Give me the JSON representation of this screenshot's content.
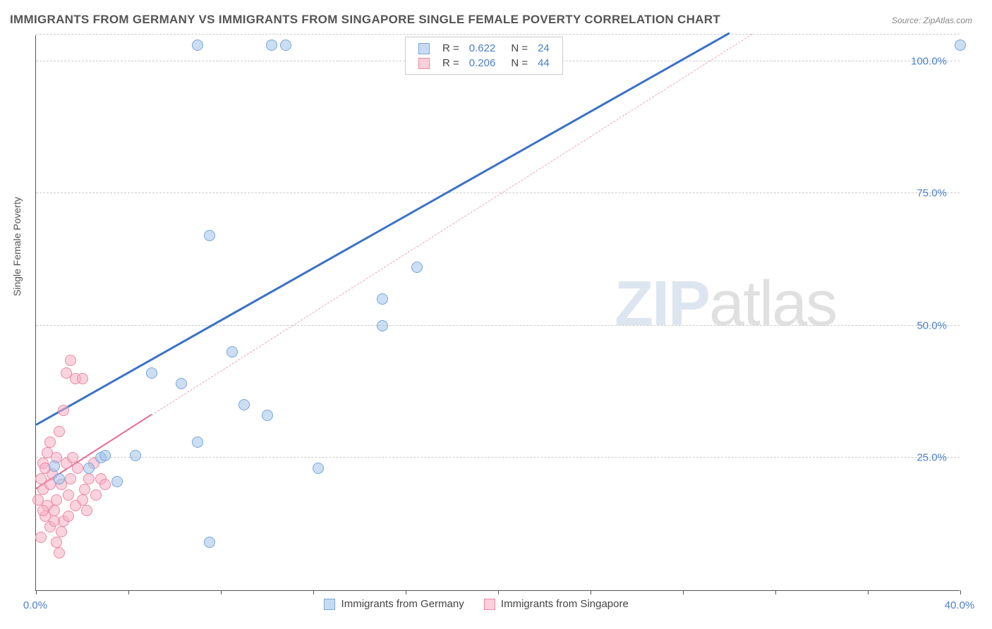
{
  "title": "IMMIGRANTS FROM GERMANY VS IMMIGRANTS FROM SINGAPORE SINGLE FEMALE POVERTY CORRELATION CHART",
  "source": "Source: ZipAtlas.com",
  "ylabel": "Single Female Poverty",
  "watermark_a": "ZIP",
  "watermark_b": "atlas",
  "chart": {
    "type": "scatter",
    "xlim": [
      0,
      40
    ],
    "ylim": [
      0,
      105
    ],
    "background_color": "#ffffff",
    "grid_color": "#cccccc",
    "x_ticks": [
      0,
      4,
      8,
      12,
      16,
      20,
      24,
      28,
      32,
      36,
      40
    ],
    "x_tick_labels": {
      "0": "0.0%",
      "40": "40.0%"
    },
    "y_gridlines": [
      25,
      50,
      75,
      100,
      105
    ],
    "y_tick_labels": {
      "25": "25.0%",
      "50": "50.0%",
      "75": "75.0%",
      "100": "100.0%"
    },
    "marker_size": 16
  },
  "legend_top": {
    "rows": [
      {
        "swatch": "blue",
        "r_label": "R =",
        "r_val": "0.622",
        "n_label": "N =",
        "n_val": "24"
      },
      {
        "swatch": "pink",
        "r_label": "R =",
        "r_val": "0.206",
        "n_label": "N =",
        "n_val": "44"
      }
    ]
  },
  "legend_bottom": {
    "items": [
      {
        "swatch": "blue",
        "label": "Immigrants from Germany"
      },
      {
        "swatch": "pink",
        "label": "Immigrants from Singapore"
      }
    ]
  },
  "series": {
    "germany": {
      "color": "#a0c3eb",
      "border": "#7aa6d8",
      "points": [
        [
          7.0,
          103
        ],
        [
          10.2,
          103
        ],
        [
          10.8,
          103
        ],
        [
          18.0,
          103
        ],
        [
          40.0,
          103
        ],
        [
          7.5,
          67
        ],
        [
          15.0,
          55
        ],
        [
          16.5,
          61
        ],
        [
          15.0,
          50
        ],
        [
          8.5,
          45
        ],
        [
          10.0,
          33
        ],
        [
          5.0,
          41
        ],
        [
          6.3,
          39
        ],
        [
          9.0,
          35
        ],
        [
          12.2,
          23
        ],
        [
          7.0,
          28
        ],
        [
          4.3,
          25.5
        ],
        [
          3.5,
          20.5
        ],
        [
          2.3,
          23
        ],
        [
          2.8,
          25
        ],
        [
          3.0,
          25.5
        ],
        [
          1.0,
          21
        ],
        [
          0.8,
          23.5
        ],
        [
          7.5,
          9
        ]
      ],
      "trend": {
        "x1": 0,
        "y1": 31,
        "x2": 30,
        "y2": 105,
        "color": "#3b72c4",
        "width": 3,
        "dash": false
      }
    },
    "singapore": {
      "color": "#f8afc3",
      "border": "#e88aa8",
      "points": [
        [
          0.3,
          19
        ],
        [
          0.5,
          16
        ],
        [
          0.4,
          14
        ],
        [
          0.8,
          15
        ],
        [
          0.6,
          12
        ],
        [
          0.2,
          10
        ],
        [
          1.0,
          7
        ],
        [
          1.2,
          13
        ],
        [
          0.9,
          17
        ],
        [
          1.1,
          20
        ],
        [
          0.7,
          22
        ],
        [
          1.4,
          18
        ],
        [
          0.3,
          24
        ],
        [
          0.5,
          26
        ],
        [
          0.9,
          25
        ],
        [
          1.3,
          24
        ],
        [
          0.6,
          28
        ],
        [
          1.0,
          30
        ],
        [
          1.5,
          21
        ],
        [
          1.8,
          23
        ],
        [
          1.6,
          25
        ],
        [
          2.1,
          19
        ],
        [
          2.3,
          21
        ],
        [
          2.0,
          17
        ],
        [
          2.5,
          24
        ],
        [
          2.8,
          21
        ],
        [
          1.2,
          34
        ],
        [
          1.7,
          40
        ],
        [
          1.3,
          41
        ],
        [
          2.0,
          40
        ],
        [
          1.5,
          43.5
        ],
        [
          0.2,
          21
        ],
        [
          0.4,
          23
        ],
        [
          0.6,
          20
        ],
        [
          0.8,
          13
        ],
        [
          0.1,
          17
        ],
        [
          0.3,
          15
        ],
        [
          1.1,
          11
        ],
        [
          1.4,
          14
        ],
        [
          0.9,
          9
        ],
        [
          1.7,
          16
        ],
        [
          2.2,
          15
        ],
        [
          2.6,
          18
        ],
        [
          3.0,
          20
        ]
      ],
      "trend_solid": {
        "x1": 0,
        "y1": 19,
        "x2": 5,
        "y2": 33,
        "color": "#e46a92",
        "width": 2
      },
      "trend_dash": {
        "x1": 5,
        "y1": 33,
        "x2": 31,
        "y2": 105,
        "color": "#e8a5bb",
        "width": 1
      }
    }
  }
}
